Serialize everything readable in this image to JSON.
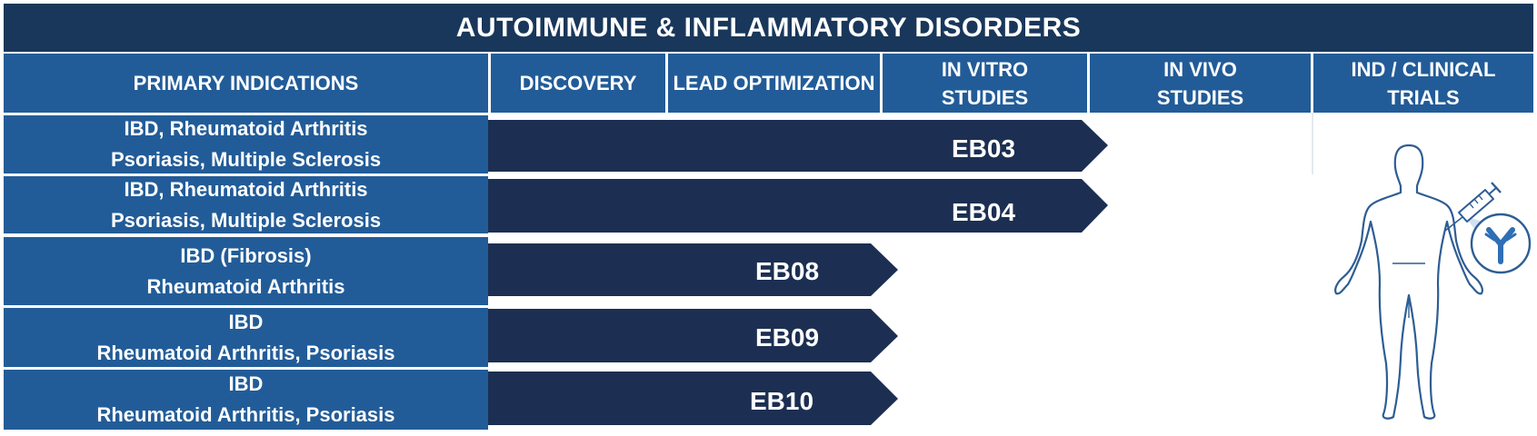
{
  "title": "AUTOIMMUNE & INFLAMMATORY DISORDERS",
  "columns": [
    "PRIMARY INDICATIONS",
    "DISCOVERY",
    "LEAD OPTIMIZATION",
    "IN VITRO\nSTUDIES",
    "IN VIVO\nSTUDIES",
    "IND / CLINICAL TRIALS"
  ],
  "rows": [
    {
      "indication": "IBD, Rheumatoid Arthritis\nPsoriasis, Multiple Sclerosis",
      "compound": "EB03",
      "stage": "IN VITRO STUDIES"
    },
    {
      "indication": "IBD, Rheumatoid Arthritis\nPsoriasis, Multiple Sclerosis",
      "compound": "EB04",
      "stage": "IN VITRO STUDIES"
    },
    {
      "indication": "IBD (Fibrosis)\nRheumatoid Arthritis",
      "compound": "EB08",
      "stage": "LEAD OPTIMIZATION"
    },
    {
      "indication": "IBD\nRheumatoid Arthritis, Psoriasis",
      "compound": "EB09",
      "stage": "LEAD OPTIMIZATION"
    },
    {
      "indication": "IBD\nRheumatoid Arthritis, Psoriasis",
      "compound": "EB10",
      "stage": "LEAD OPTIMIZATION"
    }
  ],
  "colors": {
    "header": "#19375a",
    "column_header": "#225c98",
    "arrow": "#1c2f52",
    "figure_outline": "#2e5d94"
  },
  "icons": [
    "human-figure-icon",
    "syringe-icon",
    "antibody-icon"
  ]
}
